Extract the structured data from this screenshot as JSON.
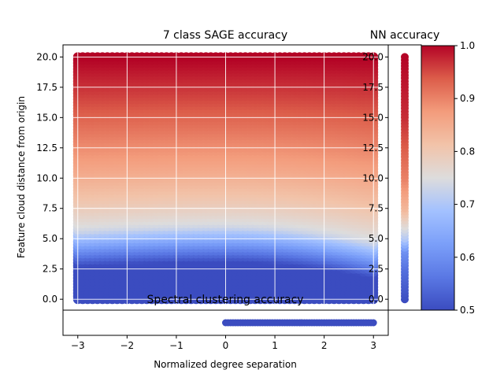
{
  "chart_data": [
    {
      "id": "main",
      "type": "scatter",
      "title": "7 class SAGE accuracy",
      "xlabel": "Normalized degree separation",
      "ylabel": "Feature cloud distance from origin",
      "xlim": [
        -3.3,
        3.3
      ],
      "ylim": [
        -0.9,
        21.0
      ],
      "xticks": [
        -3,
        -2,
        -1,
        0,
        1,
        2,
        3
      ],
      "yticks": [
        0.0,
        2.5,
        5.0,
        7.5,
        10.0,
        12.5,
        15.0,
        17.5,
        20.0
      ],
      "xtick_labels": [
        "−3",
        "−2",
        "−1",
        "0",
        "1",
        "2",
        "3"
      ],
      "ytick_labels": [
        "0.0",
        "2.5",
        "5.0",
        "7.5",
        "10.0",
        "12.5",
        "15.0",
        "17.5",
        "20.0"
      ],
      "grid": true,
      "x_range": [
        -3,
        3
      ],
      "y_range": [
        0,
        20
      ],
      "accuracy_model": {
        "description_points": [
          {
            "x": 0,
            "y": 0,
            "accuracy": 0.5
          },
          {
            "x": 0,
            "y": 4.0,
            "accuracy": 0.55
          },
          {
            "x": 0,
            "y": 5.5,
            "accuracy": 0.72
          },
          {
            "x": 0,
            "y": 10.0,
            "accuracy": 0.86
          },
          {
            "x": 0,
            "y": 20.0,
            "accuracy": 1.0
          },
          {
            "x": -3,
            "y": 4.5,
            "accuracy": 0.6
          },
          {
            "x": 3,
            "y": 2.5,
            "accuracy": 0.6
          }
        ]
      }
    },
    {
      "id": "nn",
      "type": "scatter",
      "title": "NN accuracy",
      "ylim": [
        -0.9,
        21.0
      ],
      "yticks": [
        0.0,
        2.5,
        5.0,
        7.5,
        10.0,
        12.5,
        15.0,
        17.5,
        20.0
      ],
      "ytick_labels": [
        "0.0",
        "2.5",
        "5.0",
        "7.5",
        "10.0",
        "12.5",
        "15.0",
        "17.5",
        "20.0"
      ],
      "y_range": [
        0,
        20
      ],
      "points": [
        {
          "y": 0.0,
          "accuracy": 0.5
        },
        {
          "y": 2.5,
          "accuracy": 0.55
        },
        {
          "y": 4.0,
          "accuracy": 0.6
        },
        {
          "y": 5.0,
          "accuracy": 0.7
        },
        {
          "y": 7.5,
          "accuracy": 0.83
        },
        {
          "y": 10.0,
          "accuracy": 0.9
        },
        {
          "y": 15.0,
          "accuracy": 0.97
        },
        {
          "y": 20.0,
          "accuracy": 1.0
        }
      ]
    },
    {
      "id": "spectral",
      "type": "scatter",
      "title": "Spectral clustering accuracy",
      "xlim": [
        -3.3,
        3.3
      ],
      "x_range": [
        0,
        3
      ],
      "accuracy": 0.5
    }
  ],
  "colorbar": {
    "ticks": [
      0.5,
      0.6,
      0.7,
      0.8,
      0.9,
      1.0
    ],
    "tick_labels": [
      "0.5",
      "0.6",
      "0.7",
      "0.8",
      "0.9",
      "1.0"
    ],
    "range": [
      0.5,
      1.0
    ],
    "colormap": "coolwarm",
    "low_color": "#3b4cc0",
    "mid_color": "#dddcdc",
    "high_color": "#b40426"
  }
}
